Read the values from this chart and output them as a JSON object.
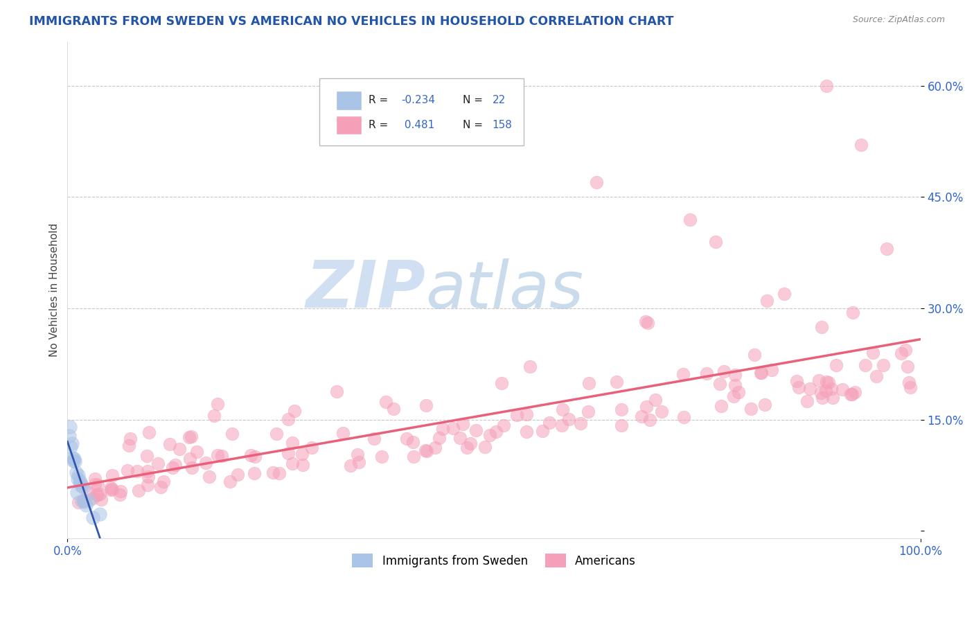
{
  "title": "IMMIGRANTS FROM SWEDEN VS AMERICAN NO VEHICLES IN HOUSEHOLD CORRELATION CHART",
  "source": "Source: ZipAtlas.com",
  "ylabel": "No Vehicles in Household",
  "y_ticks": [
    0.0,
    0.15,
    0.3,
    0.45,
    0.6
  ],
  "y_tick_labels": [
    "",
    "15.0%",
    "30.0%",
    "45.0%",
    "60.0%"
  ],
  "xlim": [
    0.0,
    1.0
  ],
  "ylim": [
    -0.01,
    0.66
  ],
  "sweden_color": "#aac4e8",
  "american_color": "#f5a0b8",
  "sweden_line_color": "#3355aa",
  "american_line_color": "#e8607a",
  "watermark_zip": "ZIP",
  "watermark_atlas": "atlas",
  "background_color": "#ffffff",
  "grid_color": "#c8c8c8",
  "title_color": "#2255aa",
  "tick_color": "#3366cc",
  "source_color": "#888888",
  "legend_sweden_r": "-0.234",
  "legend_sweden_n": "22",
  "legend_american_r": "0.481",
  "legend_american_n": "158"
}
